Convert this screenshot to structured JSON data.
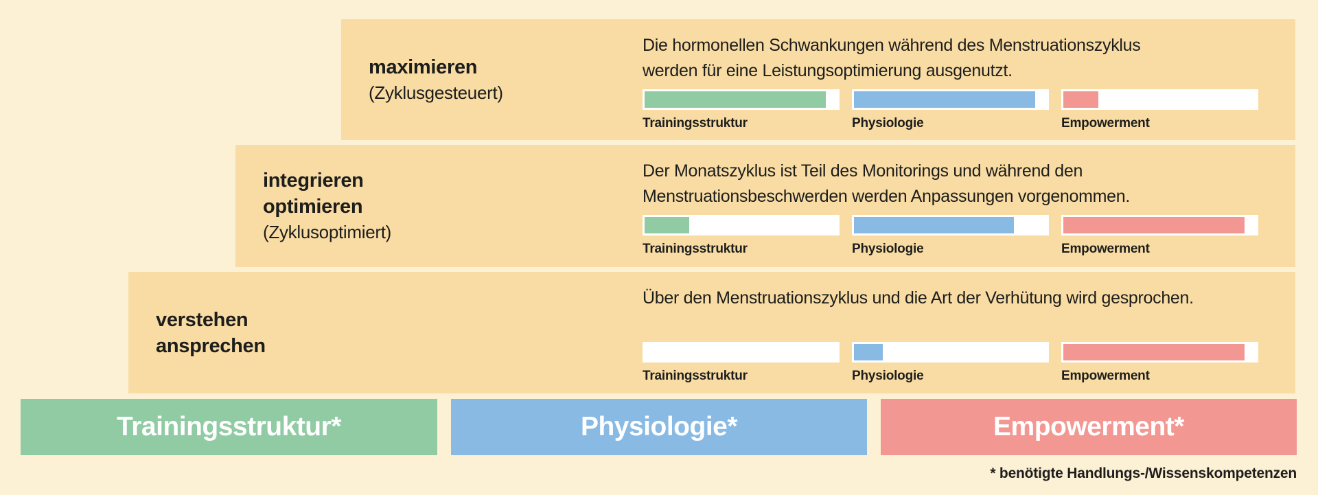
{
  "colors": {
    "background": "#fcf0d5",
    "tier_background": "#f8dca4",
    "green": "#90cba3",
    "blue": "#88bae4",
    "red": "#f39793",
    "bar_track": "#ffffff",
    "text": "#1d1d1b",
    "legend_text": "#ffffff"
  },
  "tiers": [
    {
      "title_lines": [
        "maximieren"
      ],
      "subtitle": "(Zyklusgesteuert)",
      "description_lines": [
        "Die hormonellen Schwankungen während des Menstruationszyklus",
        "werden für eine Leistungsoptimierung ausgenutzt."
      ],
      "bars": [
        {
          "label": "Trainingsstruktur",
          "color": "green",
          "percent": 94
        },
        {
          "label": "Physiologie",
          "color": "blue",
          "percent": 94
        },
        {
          "label": "Empowerment",
          "color": "red",
          "percent": 18
        }
      ]
    },
    {
      "title_lines": [
        "integrieren",
        "optimieren"
      ],
      "subtitle": "(Zyklusoptimiert)",
      "description_lines": [
        "Der Monatszyklus ist Teil des Monitorings und während den",
        "Menstruationsbeschwerden werden Anpassungen vorgenommen."
      ],
      "bars": [
        {
          "label": "Trainingsstruktur",
          "color": "green",
          "percent": 23
        },
        {
          "label": "Physiologie",
          "color": "blue",
          "percent": 83
        },
        {
          "label": "Empowerment",
          "color": "red",
          "percent": 94
        }
      ]
    },
    {
      "title_lines": [
        "verstehen",
        "ansprechen"
      ],
      "subtitle": "",
      "description_lines": [
        "Über den Menstruationszyklus und die Art der Verhütung wird gesprochen."
      ],
      "bars": [
        {
          "label": "Trainingsstruktur",
          "color": "green",
          "percent": 0
        },
        {
          "label": "Physiologie",
          "color": "blue",
          "percent": 15
        },
        {
          "label": "Empowerment",
          "color": "red",
          "percent": 94
        }
      ]
    }
  ],
  "legend": [
    {
      "label": "Trainingsstruktur*",
      "color": "green"
    },
    {
      "label": "Physiologie*",
      "color": "blue"
    },
    {
      "label": "Empowerment*",
      "color": "red"
    }
  ],
  "footnote": "* benötigte Handlungs-/Wissenskompetenzen"
}
